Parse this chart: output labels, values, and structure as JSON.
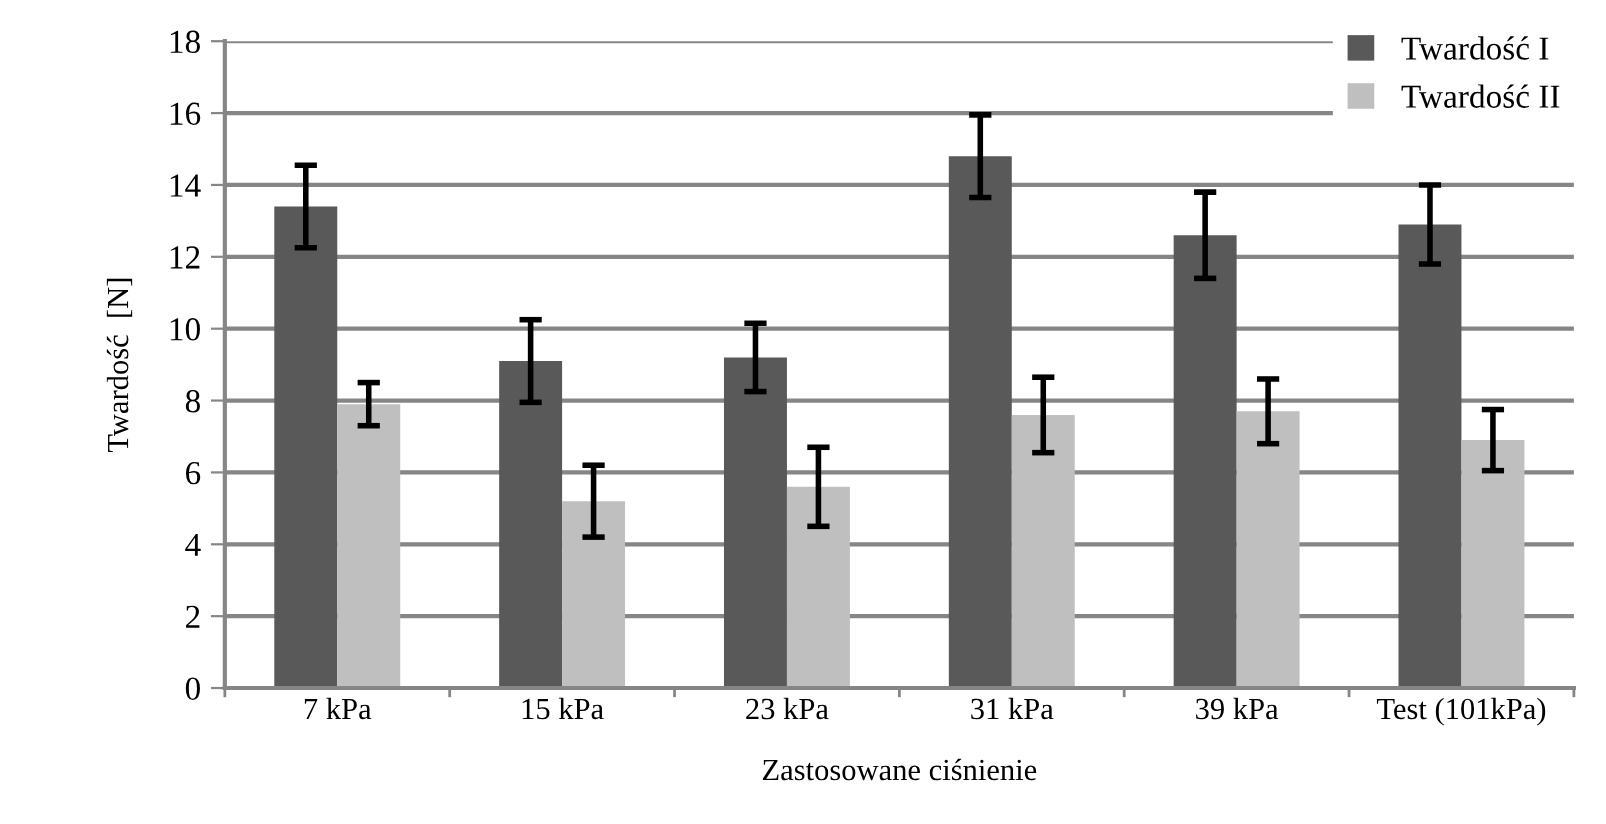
{
  "chart_data": {
    "type": "bar",
    "xlabel": "Zastosowane ciśnienie",
    "ylabel": "Twardość  [N]",
    "categories": [
      "7 kPa",
      "15 kPa",
      "23 kPa",
      "31 kPa",
      "39 kPa",
      "Test (101kPa)"
    ],
    "series": [
      {
        "name": "Twardość I",
        "color": "#595959",
        "values": [
          13.4,
          9.1,
          9.2,
          14.8,
          12.6,
          12.9
        ],
        "errors": [
          1.15,
          1.15,
          0.95,
          1.15,
          1.2,
          1.1
        ]
      },
      {
        "name": "Twardość II",
        "color": "#bfbfbf",
        "values": [
          7.9,
          5.2,
          5.6,
          7.6,
          7.7,
          6.9
        ],
        "errors": [
          0.6,
          1.0,
          1.1,
          1.05,
          0.9,
          0.85
        ]
      }
    ],
    "ylim": [
      0,
      18
    ],
    "yticks": [
      0,
      2,
      4,
      6,
      8,
      10,
      12,
      14,
      16,
      18
    ],
    "grid": "y",
    "legend": "top right"
  }
}
